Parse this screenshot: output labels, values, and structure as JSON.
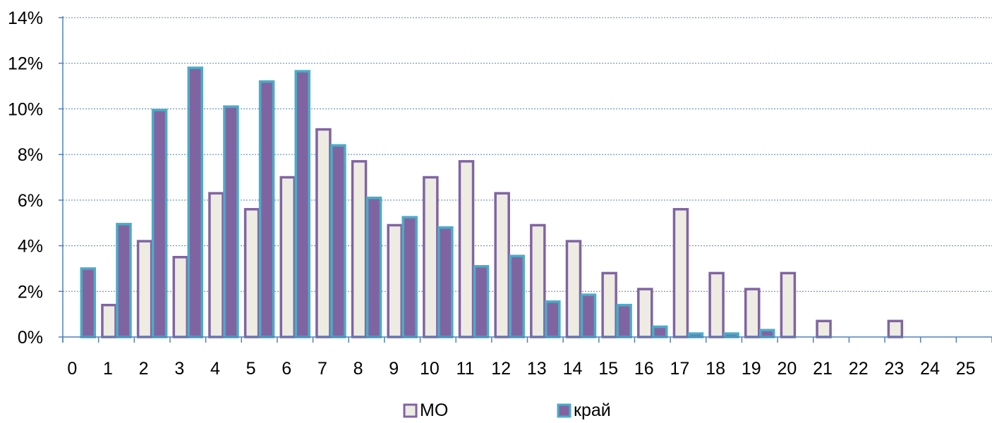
{
  "chart_data": {
    "type": "bar",
    "categories": [
      "0",
      "1",
      "2",
      "3",
      "4",
      "5",
      "6",
      "7",
      "8",
      "9",
      "10",
      "11",
      "12",
      "13",
      "14",
      "15",
      "16",
      "17",
      "18",
      "19",
      "20",
      "21",
      "22",
      "23",
      "24",
      "25"
    ],
    "series": [
      {
        "name": "МО",
        "fill": "#eeebe3",
        "stroke": "#8064a2",
        "values": [
          0,
          1.4,
          4.2,
          3.5,
          6.3,
          5.6,
          7.0,
          9.1,
          7.7,
          4.9,
          7.0,
          7.7,
          6.3,
          4.9,
          4.2,
          2.8,
          2.1,
          5.6,
          2.8,
          2.1,
          2.8,
          0.7,
          0,
          0.7,
          0,
          0
        ]
      },
      {
        "name": "край",
        "fill": "#8064a2",
        "stroke": "#4bacc6",
        "values": [
          3.0,
          4.95,
          9.95,
          11.8,
          10.1,
          11.2,
          11.65,
          8.4,
          6.1,
          5.25,
          4.8,
          3.1,
          3.55,
          1.55,
          1.85,
          1.4,
          0.45,
          0.15,
          0.15,
          0.3,
          0,
          0,
          0,
          0,
          0,
          0
        ]
      }
    ],
    "y_ticks": [
      "0%",
      "2%",
      "4%",
      "6%",
      "8%",
      "10%",
      "12%",
      "14%"
    ],
    "ylim": [
      0,
      14
    ],
    "y_unit": "%",
    "grid": true,
    "gridline_color": "#4f81bd",
    "axis_color": "#4f81bd",
    "legend_position": "bottom"
  }
}
